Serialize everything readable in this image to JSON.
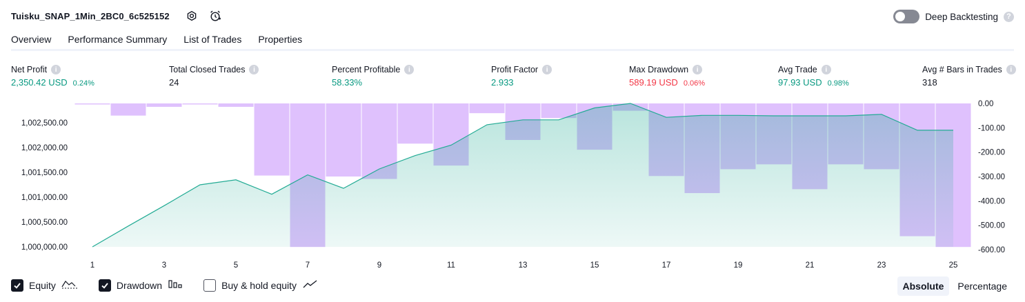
{
  "header": {
    "strategy_title": "Tuisku_SNAP_1Min_2BC0_6c525152",
    "settings_icon": "gear-icon",
    "alert_icon": "alarm-clock-add-icon",
    "deep_backtesting_label": "Deep Backtesting",
    "deep_backtesting_enabled": false
  },
  "tabs": [
    {
      "label": "Overview",
      "active": true
    },
    {
      "label": "Performance Summary",
      "active": false
    },
    {
      "label": "List of Trades",
      "active": false
    },
    {
      "label": "Properties",
      "active": false
    }
  ],
  "metrics": [
    {
      "label": "Net Profit",
      "value": "2,350.42 USD",
      "pct": "0.24%",
      "color": "green"
    },
    {
      "label": "Total Closed Trades",
      "value": "24",
      "pct": "",
      "color": "dark"
    },
    {
      "label": "Percent Profitable",
      "value": "58.33%",
      "pct": "",
      "color": "green"
    },
    {
      "label": "Profit Factor",
      "value": "2.933",
      "pct": "",
      "color": "green"
    },
    {
      "label": "Max Drawdown",
      "value": "589.19 USD",
      "pct": "0.06%",
      "color": "red"
    },
    {
      "label": "Avg Trade",
      "value": "97.93 USD",
      "pct": "0.98%",
      "color": "green"
    },
    {
      "label": "Avg # Bars in Trades",
      "value": "318",
      "pct": "",
      "color": "dark"
    }
  ],
  "colors": {
    "green": "#089981",
    "red": "#f23645",
    "equity_line": "#22ab94",
    "equity_fill": "#22ab94",
    "drawdown_fill": "#c084fc"
  },
  "chart_data": {
    "type": "area",
    "x_ticks": [
      1,
      3,
      5,
      7,
      9,
      11,
      13,
      15,
      17,
      19,
      21,
      23,
      25
    ],
    "left_axis": {
      "ticks": [
        1000000,
        1000500,
        1001000,
        1001500,
        1002000,
        1002500
      ],
      "tick_labels": [
        "1,000,000.00",
        "1,000,500.00",
        "1,001,000.00",
        "1,001,500.00",
        "1,002,000.00",
        "1,002,500.00"
      ],
      "range": [
        1000000,
        1002890
      ]
    },
    "right_axis": {
      "ticks": [
        0,
        -100,
        -200,
        -300,
        -400,
        -500,
        -600
      ],
      "tick_labels": [
        "0.00",
        "-100.00",
        "-200.00",
        "-300.00",
        "-400.00",
        "-500.00",
        "-600.00"
      ],
      "range": [
        -589.19,
        0
      ]
    },
    "series": [
      {
        "name": "Equity",
        "kind": "line-area",
        "x": [
          1,
          2,
          3,
          4,
          5,
          6,
          7,
          8,
          9,
          10,
          11,
          12,
          13,
          14,
          15,
          16,
          17,
          18,
          19,
          20,
          21,
          22,
          23,
          24,
          25
        ],
        "values": [
          1000000,
          1000420,
          1000830,
          1001250,
          1001350,
          1001060,
          1001450,
          1001180,
          1001570,
          1001840,
          1002050,
          1002460,
          1002560,
          1002560,
          1002800,
          1002890,
          1002610,
          1002650,
          1002650,
          1002640,
          1002640,
          1002640,
          1002670,
          1002350,
          1002350
        ]
      },
      {
        "name": "Drawdown",
        "kind": "bars",
        "x": [
          1,
          2,
          3,
          4,
          5,
          6,
          7,
          8,
          9,
          10,
          11,
          12,
          13,
          14,
          15,
          16,
          17,
          18,
          19,
          20,
          21,
          22,
          23,
          24,
          25
        ],
        "values": [
          -4,
          -50,
          -14,
          -4,
          -14,
          -296,
          -589.19,
          -300,
          -310,
          -165,
          -255,
          -40,
          -150,
          -60,
          -190,
          -30,
          -298,
          -368,
          -270,
          -250,
          -352,
          -250,
          -270,
          -545,
          -589.19
        ]
      }
    ]
  },
  "legend": [
    {
      "label": "Equity",
      "checked": true,
      "icon": "equity-line-icon"
    },
    {
      "label": "Drawdown",
      "checked": true,
      "icon": "drawdown-bars-icon"
    },
    {
      "label": "Buy & hold equity",
      "checked": false,
      "icon": "buy-hold-line-icon"
    }
  ],
  "modes": [
    {
      "label": "Absolute",
      "active": true
    },
    {
      "label": "Percentage",
      "active": false
    }
  ]
}
